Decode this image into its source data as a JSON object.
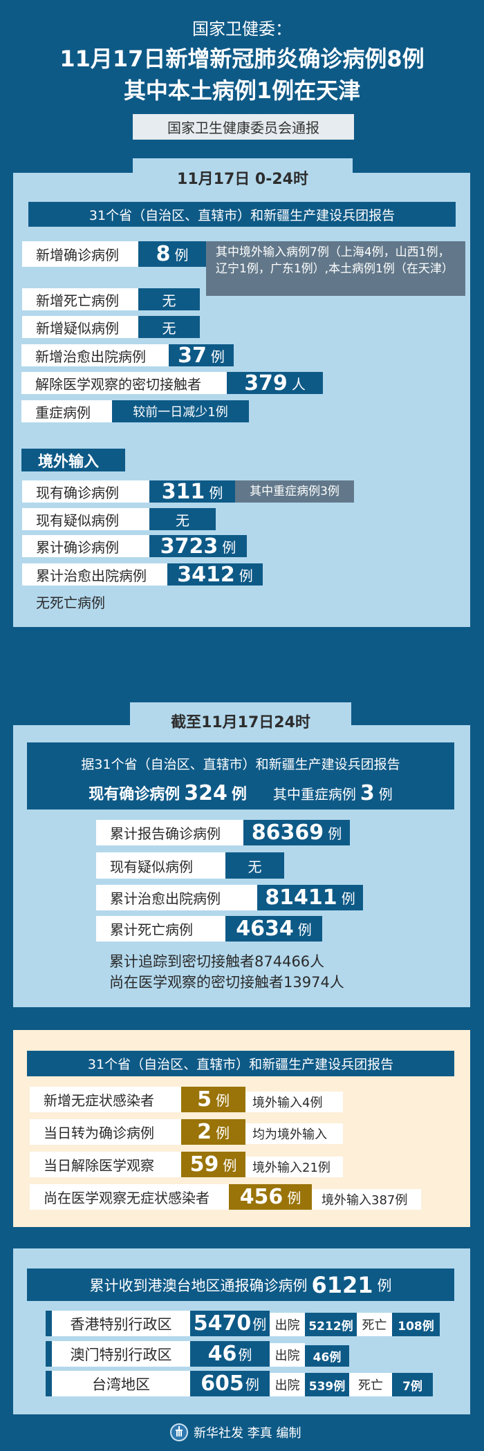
{
  "header": {
    "org": "国家卫健委：",
    "headline_1": "11月17日新增新冠肺炎确诊病例8例",
    "headline_2": "其中本土病例1例在天津",
    "source": "国家卫生健康委员会通报"
  },
  "daily": {
    "title": "11月17日 0-24时",
    "report_bar": "31个省（自治区、直辖市）和新疆生产建设兵团报告",
    "rows": [
      {
        "label": "新增确诊病例",
        "value": "8",
        "unit": "例",
        "note": "其中境外输入病例7例（上海4例，山西1例，辽宁1例，广东1例）,本土病例1例（在天津）"
      },
      {
        "label": "新增死亡病例",
        "value": "无"
      },
      {
        "label": "新增疑似病例",
        "value": "无"
      },
      {
        "label": "新增治愈出院病例",
        "value": "37",
        "unit": "例"
      },
      {
        "label": "解除医学观察的密切接触者",
        "value": "379",
        "unit": "人"
      },
      {
        "label": "重症病例",
        "value": "较前一日减少1例"
      }
    ],
    "imported": {
      "title": "境外输入",
      "rows": [
        {
          "label": "现有确诊病例",
          "value": "311",
          "unit": "例",
          "note": "其中重症病例3例"
        },
        {
          "label": "现有疑似病例",
          "value": "无"
        },
        {
          "label": "累计确诊病例",
          "value": "3723",
          "unit": "例"
        },
        {
          "label": "累计治愈出院病例",
          "value": "3412",
          "unit": "例"
        }
      ],
      "footnote": "无死亡病例"
    }
  },
  "cumulative": {
    "title": "截至11月17日24时",
    "report_line": "据31个省（自治区、直辖市）和新疆生产建设兵团报告",
    "current_label": "现有确诊病例",
    "current_value": "324",
    "current_unit": "例",
    "severe_label": "其中重症病例",
    "severe_value": "3",
    "severe_unit": "例",
    "rows": [
      {
        "label": "累计报告确诊病例",
        "value": "86369",
        "unit": "例"
      },
      {
        "label": "现有疑似病例",
        "value": "无"
      },
      {
        "label": "累计治愈出院病例",
        "value": "81411",
        "unit": "例"
      },
      {
        "label": "累计死亡病例",
        "value": "4634",
        "unit": "例"
      }
    ],
    "line_1": "累计追踪到密切接触者874466人",
    "line_2": "尚在医学观察的密切接触者13974人"
  },
  "asymptomatic": {
    "report_bar": "31个省（自治区、直辖市）和新疆生产建设兵团报告",
    "rows": [
      {
        "label": "新增无症状感染者",
        "value": "5",
        "unit": "例",
        "note": "境外输入4例"
      },
      {
        "label": "当日转为确诊病例",
        "value": "2",
        "unit": "例",
        "note": "均为境外输入"
      },
      {
        "label": "当日解除医学观察",
        "value": "59",
        "unit": "例",
        "note": "境外输入21例"
      },
      {
        "label": "尚在医学观察无症状感染者",
        "value": "456",
        "unit": "例",
        "note": "境外输入387例"
      }
    ]
  },
  "hmt": {
    "header_text": "累计收到港澳台地区通报确诊病例",
    "header_value": "6121",
    "header_unit": "例",
    "discharged_label": "出院",
    "death_label": "死亡",
    "rows": [
      {
        "region": "香港特别行政区",
        "value": "5470",
        "unit": "例",
        "discharged": "5212例",
        "deaths": "108例"
      },
      {
        "region": "澳门特别行政区",
        "value": "46",
        "unit": "例",
        "discharged": "46例"
      },
      {
        "region": "台湾地区",
        "value": "605",
        "unit": "例",
        "discharged": "539例",
        "deaths": "7例"
      }
    ]
  },
  "footer": {
    "credit": "新华社发 李真 编制",
    "logo_icon": "xinhua-logo-icon"
  },
  "colors": {
    "background": "#0e5a87",
    "panel": "#b3d8ec",
    "value_box": "#0e5a87",
    "note_gray": "#62788a",
    "cream": "#fdefd8",
    "gold": "#9a7409"
  }
}
